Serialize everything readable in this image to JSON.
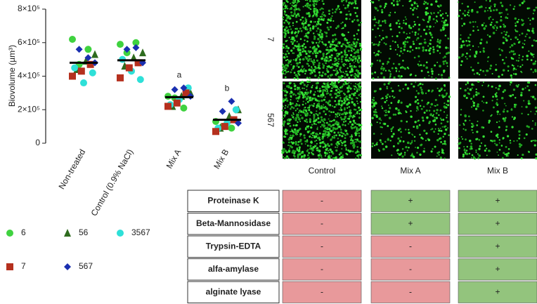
{
  "chart_data": {
    "type": "scatter",
    "y_label": "Biovolume (µm³)",
    "categories": [
      "Non-treated",
      "Control (0.9% NaCl)",
      "Mix A",
      "Mix B"
    ],
    "letters": [
      null,
      null,
      "a",
      "b"
    ],
    "means": [
      480000,
      495000,
      275000,
      140000
    ],
    "ylim": [
      0,
      800000
    ],
    "yticks": [
      0,
      {
        "value": 200000,
        "label": "2×10⁵"
      },
      {
        "value": 400000,
        "label": "4×10⁵"
      },
      {
        "value": 600000,
        "label": "6×10⁵"
      },
      {
        "value": 800000,
        "label": "8×10⁵"
      }
    ],
    "series": [
      {
        "name": "6",
        "color": "#3fd23f",
        "marker": "circle",
        "values": [
          [
            620000,
            560000,
            470000
          ],
          [
            590000,
            600000,
            540000
          ],
          [
            280000,
            210000,
            270000
          ],
          [
            130000,
            90000,
            100000
          ]
        ]
      },
      {
        "name": "56",
        "color": "#2e6b1e",
        "marker": "triangle",
        "values": [
          [
            530000,
            490000,
            440000
          ],
          [
            540000,
            510000,
            460000
          ],
          [
            300000,
            280000,
            220000
          ],
          [
            200000,
            160000,
            90000
          ]
        ]
      },
      {
        "name": "3567",
        "color": "#2ee0d8",
        "marker": "circle",
        "values": [
          [
            420000,
            360000,
            450000
          ],
          [
            380000,
            430000,
            500000
          ],
          [
            330000,
            260000,
            230000
          ],
          [
            200000,
            120000,
            90000
          ]
        ]
      },
      {
        "name": "7",
        "color": "#b5301e",
        "marker": "square",
        "values": [
          [
            470000,
            430000,
            400000
          ],
          [
            480000,
            450000,
            390000
          ],
          [
            300000,
            240000,
            220000
          ],
          [
            140000,
            100000,
            70000
          ]
        ]
      },
      {
        "name": "567",
        "color": "#1a2fb0",
        "marker": "diamond",
        "values": [
          [
            510000,
            560000,
            480000
          ],
          [
            570000,
            560000,
            480000
          ],
          [
            330000,
            320000,
            280000
          ],
          [
            250000,
            190000,
            120000
          ]
        ]
      }
    ]
  },
  "images": {
    "rows": [
      "7",
      "567"
    ],
    "columns": [
      "Control",
      "Mix A",
      "Mix B"
    ]
  },
  "table": {
    "rows": [
      {
        "label": "Proteinase K",
        "cells": [
          {
            "text": "-",
            "color": "#e8999b"
          },
          {
            "text": "+",
            "color": "#93c47d"
          },
          {
            "text": "+",
            "color": "#93c47d"
          }
        ]
      },
      {
        "label": "Beta-Mannosidase",
        "cells": [
          {
            "text": "-",
            "color": "#e8999b"
          },
          {
            "text": "+",
            "color": "#93c47d"
          },
          {
            "text": "+",
            "color": "#93c47d"
          }
        ]
      },
      {
        "label": "Trypsin-EDTA",
        "cells": [
          {
            "text": "-",
            "color": "#e8999b"
          },
          {
            "text": "-",
            "color": "#e8999b"
          },
          {
            "text": "+",
            "color": "#93c47d"
          }
        ]
      },
      {
        "label": "alfa-amylase",
        "cells": [
          {
            "text": "-",
            "color": "#e8999b"
          },
          {
            "text": "-",
            "color": "#e8999b"
          },
          {
            "text": "+",
            "color": "#93c47d"
          }
        ]
      },
      {
        "label": "alginate lyase",
        "cells": [
          {
            "text": "-",
            "color": "#e8999b"
          },
          {
            "text": "-",
            "color": "#e8999b"
          },
          {
            "text": "+",
            "color": "#93c47d"
          }
        ]
      }
    ]
  }
}
